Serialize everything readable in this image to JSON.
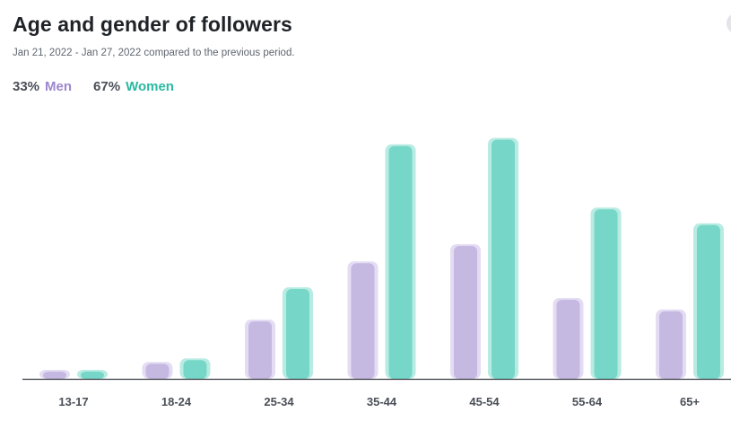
{
  "header": {
    "title": "Age and gender of followers",
    "subtitle": "Jan 21, 2022 - Jan 27, 2022 compared to the previous period."
  },
  "legend": {
    "men_pct": "33%",
    "men_label": "Men",
    "women_pct": "67%",
    "women_label": "Women"
  },
  "colors": {
    "men": "#c5b9e2",
    "men_shadow": "#e4dcf3",
    "women": "#76d7c8",
    "women_shadow": "#b8ebe2",
    "axis": "#3a3f45"
  },
  "chart_data": {
    "type": "bar",
    "categories": [
      "13-17",
      "18-24",
      "25-34",
      "35-44",
      "45-54",
      "55-64",
      "65+"
    ],
    "series": [
      {
        "name": "Men",
        "values": [
          1.0,
          2.1,
          8.0,
          16.1,
          18.5,
          11.0,
          9.4
        ]
      },
      {
        "name": "Women",
        "values": [
          1.0,
          2.6,
          12.5,
          32.4,
          33.3,
          23.6,
          21.4
        ]
      }
    ],
    "ylim": [
      0,
      35
    ],
    "grid": false,
    "legend_position": "top-left"
  }
}
